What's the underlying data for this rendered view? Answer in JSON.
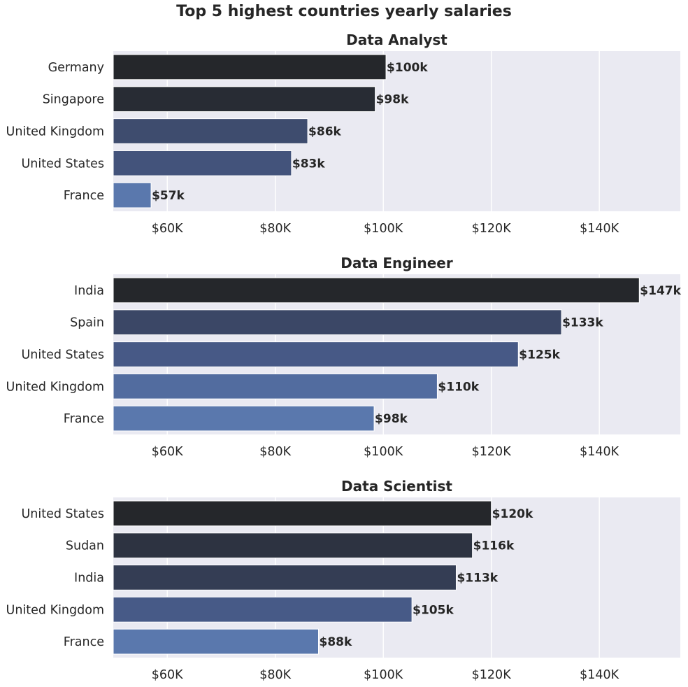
{
  "chart_data": {
    "type": "bar",
    "orientation": "horizontal",
    "title": "Top 5 highest countries yearly salaries",
    "xlim": [
      50000,
      155000
    ],
    "x_ticks": [
      60000,
      80000,
      100000,
      120000,
      140000
    ],
    "x_tick_labels": [
      "$60K",
      "$80K",
      "$100K",
      "$120K",
      "$140K"
    ],
    "grid": true,
    "palette_dark_to_light": [
      "#25272b",
      "#4a5e8f",
      "#5a78ad"
    ],
    "panels": [
      {
        "title": "Data Analyst",
        "categories": [
          "Germany",
          "Singapore",
          "United Kingdom",
          "United States",
          "France"
        ],
        "values": [
          100500,
          98500,
          86000,
          83000,
          57000
        ],
        "labels": [
          "$100k",
          "$98k",
          "$86k",
          "$83k",
          "$57k"
        ]
      },
      {
        "title": "Data Engineer",
        "categories": [
          "India",
          "Spain",
          "United States",
          "United Kingdom",
          "France"
        ],
        "values": [
          147400,
          133000,
          125000,
          110000,
          98300
        ],
        "labels": [
          "$147k",
          "$133k",
          "$125k",
          "$110k",
          "$98k"
        ]
      },
      {
        "title": "Data Scientist",
        "categories": [
          "United States",
          "Sudan",
          "India",
          "United Kingdom",
          "France"
        ],
        "values": [
          120000,
          116500,
          113500,
          105300,
          88000
        ],
        "labels": [
          "$120k",
          "$116k",
          "$113k",
          "$105k",
          "$88k"
        ]
      }
    ]
  }
}
